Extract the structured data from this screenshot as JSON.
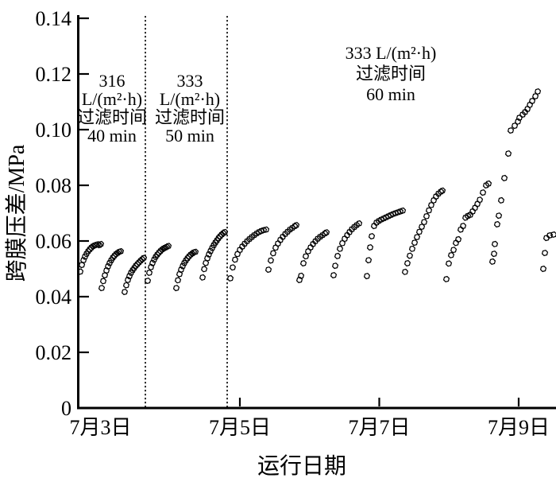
{
  "figure": {
    "background": "#ffffff",
    "ink_color": "#000000"
  },
  "chart_data": {
    "type": "scatter",
    "title": "",
    "xlabel": "运行日期",
    "ylabel": "跨膜压差/MPa",
    "marker": "open-hexagon",
    "marker_color": "#000000",
    "grid": false,
    "legend": "none",
    "xlim": [
      2.664,
      9.54
    ],
    "ylim": [
      0,
      0.14
    ],
    "x_ticks": [
      {
        "label": "7月3日",
        "day": 3,
        "mark": false
      },
      {
        "label": "7月5日",
        "day": 5,
        "mark": true
      },
      {
        "label": "7月7日",
        "day": 7,
        "mark": true
      },
      {
        "label": "7月9日",
        "day": 9,
        "mark": true
      }
    ],
    "y_ticks": [
      {
        "label": "0",
        "value": 0
      },
      {
        "label": "0.02",
        "value": 0.02
      },
      {
        "label": "0.04",
        "value": 0.04
      },
      {
        "label": "0.06",
        "value": 0.06
      },
      {
        "label": "0.08",
        "value": 0.08
      },
      {
        "label": "0.10",
        "value": 0.1
      },
      {
        "label": "0.12",
        "value": 0.12
      },
      {
        "label": "0.14",
        "value": 0.14
      }
    ],
    "divider_days": [
      3.644,
      4.818
    ],
    "annotations": [
      {
        "lines": [
          "316",
          "L/(m²·h)",
          "过滤时间",
          "40 min"
        ],
        "day": 3.165,
        "p_first_line": 0.1177,
        "line_gap": 23
      },
      {
        "lines": [
          "333",
          "L/(m²·h)",
          "过滤时间",
          "50 min"
        ],
        "day": 4.282,
        "p_first_line": 0.1177,
        "line_gap": 23
      },
      {
        "lines": [
          "333 L/(m²·h)",
          "过滤时间",
          "60 min"
        ],
        "day": 7.165,
        "p_first_line": 0.1277,
        "line_gap": 26
      }
    ],
    "series": [
      {
        "name": "cycle-01",
        "points": [
          [
            2.71,
            0.049
          ],
          [
            2.733,
            0.0514
          ],
          [
            2.756,
            0.0531
          ],
          [
            2.778,
            0.0544
          ],
          [
            2.8,
            0.0554
          ],
          [
            2.823,
            0.0563
          ],
          [
            2.846,
            0.057
          ],
          [
            2.869,
            0.0576
          ],
          [
            2.892,
            0.0581
          ],
          [
            2.915,
            0.0584
          ],
          [
            2.937,
            0.0586
          ],
          [
            2.96,
            0.0588
          ],
          [
            2.983,
            0.0585
          ],
          [
            3.006,
            0.0589
          ]
        ]
      },
      {
        "name": "cycle-02",
        "points": [
          [
            3.017,
            0.0431
          ],
          [
            3.04,
            0.0456
          ],
          [
            3.063,
            0.0477
          ],
          [
            3.086,
            0.0494
          ],
          [
            3.109,
            0.0509
          ],
          [
            3.131,
            0.0521
          ],
          [
            3.154,
            0.0531
          ],
          [
            3.177,
            0.054
          ],
          [
            3.2,
            0.0547
          ],
          [
            3.223,
            0.0553
          ],
          [
            3.246,
            0.0557
          ],
          [
            3.268,
            0.0561
          ],
          [
            3.291,
            0.0563
          ]
        ]
      },
      {
        "name": "cycle-03",
        "points": [
          [
            3.347,
            0.0417
          ],
          [
            3.37,
            0.0441
          ],
          [
            3.393,
            0.046
          ],
          [
            3.416,
            0.0474
          ],
          [
            3.438,
            0.0486
          ],
          [
            3.461,
            0.0495
          ],
          [
            3.484,
            0.0503
          ],
          [
            3.507,
            0.0511
          ],
          [
            3.53,
            0.0517
          ],
          [
            3.552,
            0.0523
          ],
          [
            3.575,
            0.0529
          ],
          [
            3.598,
            0.0534
          ],
          [
            3.621,
            0.0539
          ]
        ]
      },
      {
        "name": "cycle-04",
        "points": [
          [
            3.678,
            0.0457
          ],
          [
            3.701,
            0.0486
          ],
          [
            3.724,
            0.0506
          ],
          [
            3.747,
            0.0521
          ],
          [
            3.77,
            0.0533
          ],
          [
            3.792,
            0.0543
          ],
          [
            3.815,
            0.0551
          ],
          [
            3.838,
            0.0558
          ],
          [
            3.861,
            0.0564
          ],
          [
            3.884,
            0.0569
          ],
          [
            3.906,
            0.0573
          ],
          [
            3.929,
            0.0576
          ],
          [
            3.952,
            0.0579
          ],
          [
            3.975,
            0.0582
          ]
        ]
      },
      {
        "name": "cycle-05",
        "points": [
          [
            4.088,
            0.0431
          ],
          [
            4.111,
            0.0459
          ],
          [
            4.134,
            0.0481
          ],
          [
            4.157,
            0.0497
          ],
          [
            4.18,
            0.051
          ],
          [
            4.202,
            0.0521
          ],
          [
            4.225,
            0.053
          ],
          [
            4.248,
            0.0538
          ],
          [
            4.271,
            0.0545
          ],
          [
            4.294,
            0.0551
          ],
          [
            4.317,
            0.0555
          ],
          [
            4.339,
            0.0559
          ],
          [
            4.362,
            0.0561
          ]
        ]
      },
      {
        "name": "cycle-06",
        "points": [
          [
            4.465,
            0.0469
          ],
          [
            4.488,
            0.0499
          ],
          [
            4.511,
            0.0521
          ],
          [
            4.534,
            0.0538
          ],
          [
            4.556,
            0.0552
          ],
          [
            4.579,
            0.0564
          ],
          [
            4.602,
            0.0575
          ],
          [
            4.625,
            0.0585
          ],
          [
            4.648,
            0.0594
          ],
          [
            4.671,
            0.0602
          ],
          [
            4.693,
            0.061
          ],
          [
            4.716,
            0.0617
          ],
          [
            4.739,
            0.0623
          ],
          [
            4.762,
            0.0628
          ],
          [
            4.785,
            0.0632
          ]
        ]
      },
      {
        "name": "cycle-07",
        "points": [
          [
            4.863,
            0.0466
          ],
          [
            4.897,
            0.0505
          ],
          [
            4.931,
            0.0533
          ],
          [
            4.966,
            0.0553
          ],
          [
            5.0,
            0.0568
          ],
          [
            5.034,
            0.058
          ],
          [
            5.068,
            0.059
          ],
          [
            5.103,
            0.0599
          ],
          [
            5.137,
            0.0607
          ],
          [
            5.171,
            0.0614
          ],
          [
            5.205,
            0.0621
          ],
          [
            5.24,
            0.0627
          ],
          [
            5.274,
            0.0632
          ],
          [
            5.308,
            0.0636
          ],
          [
            5.342,
            0.0639
          ],
          [
            5.376,
            0.0641
          ]
        ]
      },
      {
        "name": "cycle-08",
        "points": [
          [
            5.41,
            0.0497
          ],
          [
            5.444,
            0.053
          ],
          [
            5.478,
            0.0556
          ],
          [
            5.513,
            0.0576
          ],
          [
            5.547,
            0.0591
          ],
          [
            5.581,
            0.0604
          ],
          [
            5.615,
            0.0615
          ],
          [
            5.65,
            0.0625
          ],
          [
            5.684,
            0.0633
          ],
          [
            5.718,
            0.0641
          ],
          [
            5.752,
            0.0647
          ],
          [
            5.787,
            0.0653
          ],
          [
            5.809,
            0.0657
          ]
        ]
      },
      {
        "name": "cycle-09",
        "points": [
          [
            5.855,
            0.046
          ],
          [
            5.878,
            0.0475
          ],
          [
            5.912,
            0.052
          ],
          [
            5.946,
            0.0545
          ],
          [
            5.98,
            0.0563
          ],
          [
            6.015,
            0.0577
          ],
          [
            6.049,
            0.0589
          ],
          [
            6.083,
            0.0599
          ],
          [
            6.117,
            0.0608
          ],
          [
            6.151,
            0.0615
          ],
          [
            6.186,
            0.0621
          ],
          [
            6.22,
            0.0627
          ],
          [
            6.242,
            0.0631
          ]
        ]
      },
      {
        "name": "cycle-10",
        "points": [
          [
            6.345,
            0.0477
          ],
          [
            6.368,
            0.0511
          ],
          [
            6.402,
            0.0546
          ],
          [
            6.436,
            0.0572
          ],
          [
            6.47,
            0.0592
          ],
          [
            6.504,
            0.0608
          ],
          [
            6.539,
            0.0621
          ],
          [
            6.573,
            0.0632
          ],
          [
            6.607,
            0.0642
          ],
          [
            6.641,
            0.065
          ],
          [
            6.675,
            0.0657
          ],
          [
            6.71,
            0.0663
          ]
        ]
      },
      {
        "name": "cycle-11",
        "points": [
          [
            6.823,
            0.0474
          ],
          [
            6.846,
            0.0531
          ],
          [
            6.869,
            0.0577
          ],
          [
            6.892,
            0.0617
          ],
          [
            6.926,
            0.0654
          ],
          [
            6.96,
            0.0666
          ],
          [
            6.994,
            0.0672
          ],
          [
            7.028,
            0.0677
          ],
          [
            7.063,
            0.0681
          ],
          [
            7.097,
            0.0685
          ],
          [
            7.131,
            0.0689
          ],
          [
            7.165,
            0.0693
          ],
          [
            7.199,
            0.0697
          ],
          [
            7.233,
            0.07
          ],
          [
            7.268,
            0.0703
          ],
          [
            7.302,
            0.0706
          ],
          [
            7.336,
            0.0709
          ]
        ]
      },
      {
        "name": "cycle-12",
        "points": [
          [
            7.37,
            0.0489
          ],
          [
            7.404,
            0.052
          ],
          [
            7.438,
            0.0547
          ],
          [
            7.473,
            0.0572
          ],
          [
            7.507,
            0.0594
          ],
          [
            7.541,
            0.0614
          ],
          [
            7.575,
            0.0633
          ],
          [
            7.61,
            0.0651
          ],
          [
            7.644,
            0.0668
          ],
          [
            7.678,
            0.0689
          ],
          [
            7.712,
            0.071
          ],
          [
            7.746,
            0.0729
          ],
          [
            7.781,
            0.0746
          ],
          [
            7.815,
            0.076
          ],
          [
            7.849,
            0.077
          ],
          [
            7.883,
            0.0777
          ],
          [
            7.906,
            0.0781
          ]
        ]
      },
      {
        "name": "cycle-13",
        "points": [
          [
            7.963,
            0.0463
          ],
          [
            7.997,
            0.0519
          ],
          [
            8.031,
            0.0549
          ],
          [
            8.066,
            0.0568
          ],
          [
            8.1,
            0.0593
          ],
          [
            8.134,
            0.0606
          ],
          [
            8.168,
            0.0641
          ],
          [
            8.202,
            0.0654
          ],
          [
            8.237,
            0.0684
          ],
          [
            8.271,
            0.069
          ],
          [
            8.305,
            0.0694
          ],
          [
            8.339,
            0.0706
          ],
          [
            8.374,
            0.0719
          ],
          [
            8.408,
            0.0733
          ],
          [
            8.442,
            0.0748
          ],
          [
            8.487,
            0.0774
          ],
          [
            8.533,
            0.08
          ],
          [
            8.567,
            0.0806
          ]
        ]
      },
      {
        "name": "cycle-14",
        "points": [
          [
            8.624,
            0.0526
          ],
          [
            8.647,
            0.0554
          ],
          [
            8.658,
            0.0589
          ],
          [
            8.692,
            0.066
          ],
          [
            8.715,
            0.0691
          ],
          [
            8.749,
            0.0746
          ],
          [
            8.795,
            0.0826
          ],
          [
            8.852,
            0.0914
          ],
          [
            8.886,
            0.0997
          ],
          [
            8.943,
            0.1014
          ],
          [
            8.989,
            0.1029
          ],
          [
            9.011,
            0.1043
          ],
          [
            9.057,
            0.1054
          ],
          [
            9.091,
            0.1063
          ],
          [
            9.126,
            0.1074
          ],
          [
            9.16,
            0.1089
          ],
          [
            9.194,
            0.1103
          ],
          [
            9.24,
            0.112
          ],
          [
            9.274,
            0.1137
          ]
        ]
      },
      {
        "name": "cycle-15",
        "points": [
          [
            9.353,
            0.05
          ],
          [
            9.376,
            0.0557
          ],
          [
            9.399,
            0.0611
          ],
          [
            9.445,
            0.062
          ],
          [
            9.502,
            0.0623
          ]
        ]
      }
    ]
  }
}
